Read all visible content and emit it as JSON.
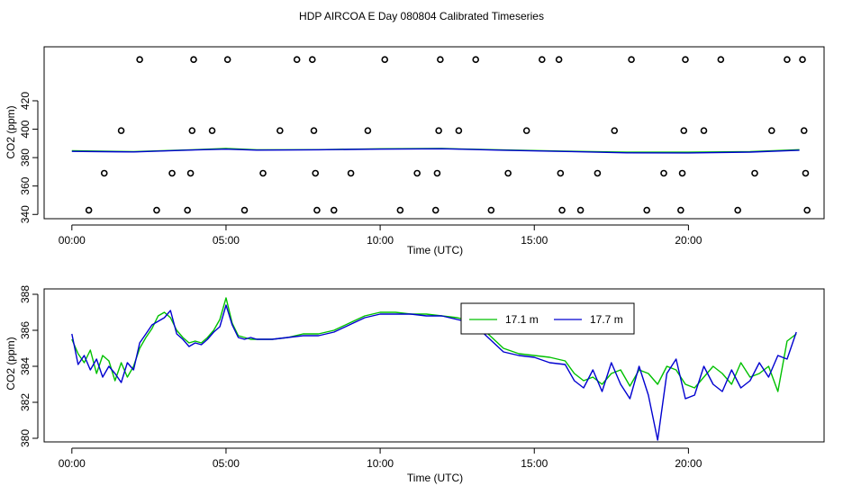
{
  "title": "HDP AIRCOA E  Day 080804  Calibrated Timeseries",
  "colors": {
    "green": "#00c000",
    "blue": "#0000d0",
    "axis": "#000000"
  },
  "chart_data": [
    {
      "type": "scatter",
      "title": "HDP AIRCOA E  Day 080804  Calibrated Timeseries",
      "xlabel": "Time (UTC)",
      "ylabel": "CO2 (ppm)",
      "xlim": [
        -0.9,
        24.4
      ],
      "ylim": [
        337,
        458
      ],
      "x_ticks": [
        0,
        5,
        10,
        15,
        20
      ],
      "x_tick_labels": [
        "00:00",
        "05:00",
        "10:00",
        "15:00",
        "20:00"
      ],
      "y_ticks": [
        340,
        360,
        380,
        400,
        420
      ],
      "y_tick_labels": [
        "340",
        "360",
        "380",
        "400",
        "420"
      ],
      "grid": false,
      "calibration_points": [
        {
          "x": 0.55,
          "y": 343
        },
        {
          "x": 1.05,
          "y": 369
        },
        {
          "x": 1.6,
          "y": 399
        },
        {
          "x": 2.2,
          "y": 449
        },
        {
          "x": 2.75,
          "y": 343
        },
        {
          "x": 3.25,
          "y": 369
        },
        {
          "x": 3.75,
          "y": 343
        },
        {
          "x": 3.85,
          "y": 369
        },
        {
          "x": 3.9,
          "y": 399
        },
        {
          "x": 3.95,
          "y": 449
        },
        {
          "x": 4.55,
          "y": 399
        },
        {
          "x": 5.05,
          "y": 449
        },
        {
          "x": 5.6,
          "y": 343
        },
        {
          "x": 6.2,
          "y": 369
        },
        {
          "x": 6.75,
          "y": 399
        },
        {
          "x": 7.3,
          "y": 449
        },
        {
          "x": 7.8,
          "y": 449
        },
        {
          "x": 7.85,
          "y": 399
        },
        {
          "x": 7.9,
          "y": 369
        },
        {
          "x": 7.95,
          "y": 343
        },
        {
          "x": 8.5,
          "y": 343
        },
        {
          "x": 9.05,
          "y": 369
        },
        {
          "x": 9.6,
          "y": 399
        },
        {
          "x": 10.15,
          "y": 449
        },
        {
          "x": 10.65,
          "y": 343
        },
        {
          "x": 11.2,
          "y": 369
        },
        {
          "x": 11.8,
          "y": 343
        },
        {
          "x": 11.85,
          "y": 369
        },
        {
          "x": 11.9,
          "y": 399
        },
        {
          "x": 11.95,
          "y": 449
        },
        {
          "x": 12.55,
          "y": 399
        },
        {
          "x": 13.1,
          "y": 449
        },
        {
          "x": 13.6,
          "y": 343
        },
        {
          "x": 14.15,
          "y": 369
        },
        {
          "x": 14.75,
          "y": 399
        },
        {
          "x": 15.25,
          "y": 449
        },
        {
          "x": 15.8,
          "y": 449
        },
        {
          "x": 15.85,
          "y": 369
        },
        {
          "x": 15.9,
          "y": 343
        },
        {
          "x": 16.5,
          "y": 343
        },
        {
          "x": 17.05,
          "y": 369
        },
        {
          "x": 17.6,
          "y": 399
        },
        {
          "x": 18.15,
          "y": 449
        },
        {
          "x": 18.65,
          "y": 343
        },
        {
          "x": 19.2,
          "y": 369
        },
        {
          "x": 19.75,
          "y": 343
        },
        {
          "x": 19.8,
          "y": 369
        },
        {
          "x": 19.85,
          "y": 399
        },
        {
          "x": 19.9,
          "y": 449
        },
        {
          "x": 20.5,
          "y": 399
        },
        {
          "x": 21.05,
          "y": 449
        },
        {
          "x": 21.6,
          "y": 343
        },
        {
          "x": 22.15,
          "y": 369
        },
        {
          "x": 22.7,
          "y": 399
        },
        {
          "x": 23.2,
          "y": 449
        },
        {
          "x": 23.7,
          "y": 449
        },
        {
          "x": 23.75,
          "y": 399
        },
        {
          "x": 23.8,
          "y": 369
        },
        {
          "x": 23.85,
          "y": 343
        }
      ],
      "series": [
        {
          "color": "#00c000",
          "x": [
            0,
            2,
            4,
            5,
            6,
            8,
            10,
            12,
            14,
            16,
            18,
            20,
            22,
            23.6
          ],
          "y": [
            384.8,
            384.2,
            385.6,
            386.4,
            385.5,
            385.6,
            386.2,
            386.4,
            385.4,
            384.6,
            383.8,
            383.8,
            384.2,
            385.6
          ]
        },
        {
          "color": "#0000d0",
          "x": [
            0,
            2,
            4,
            5,
            6,
            8,
            10,
            12,
            14,
            16,
            18,
            20,
            22,
            23.6
          ],
          "y": [
            384.4,
            384.0,
            385.4,
            386.0,
            385.3,
            385.5,
            386.0,
            386.2,
            385.2,
            384.3,
            383.4,
            383.3,
            383.9,
            385.2
          ]
        }
      ]
    },
    {
      "type": "line",
      "xlabel": "Time (UTC)",
      "ylabel": "CO2 (ppm)",
      "xlim": [
        -0.9,
        24.4
      ],
      "ylim": [
        379.8,
        388.3
      ],
      "x_ticks": [
        0,
        5,
        10,
        15,
        20
      ],
      "x_tick_labels": [
        "00:00",
        "05:00",
        "10:00",
        "15:00",
        "20:00"
      ],
      "y_ticks": [
        380,
        382,
        384,
        386,
        388
      ],
      "y_tick_labels": [
        "380",
        "382",
        "384",
        "386",
        "388"
      ],
      "grid": false,
      "legend_position": "top-right",
      "series": [
        {
          "name": "17.1 m",
          "color": "#00c000",
          "x": [
            0,
            0.2,
            0.4,
            0.6,
            0.8,
            1.0,
            1.2,
            1.4,
            1.6,
            1.8,
            2.0,
            2.2,
            2.4,
            2.6,
            2.8,
            3.0,
            3.2,
            3.4,
            3.6,
            3.8,
            4.0,
            4.2,
            4.4,
            4.6,
            4.8,
            5.0,
            5.2,
            5.4,
            5.6,
            5.8,
            6.0,
            6.5,
            7.0,
            7.5,
            8.0,
            8.5,
            9.0,
            9.5,
            10.0,
            10.5,
            11.0,
            11.5,
            12.0,
            12.5,
            13.0,
            13.5,
            14.0,
            14.5,
            15.0,
            15.5,
            16.0,
            16.3,
            16.6,
            16.9,
            17.2,
            17.5,
            17.8,
            18.1,
            18.4,
            18.7,
            19.0,
            19.3,
            19.6,
            19.9,
            20.2,
            20.5,
            20.8,
            21.1,
            21.4,
            21.7,
            22.0,
            22.3,
            22.6,
            22.9,
            23.2,
            23.5
          ],
          "y": [
            385.5,
            384.7,
            384.2,
            384.9,
            383.6,
            384.6,
            384.3,
            383.2,
            384.2,
            383.4,
            384.0,
            385.0,
            385.6,
            386.1,
            386.8,
            387.0,
            386.7,
            386.0,
            385.6,
            385.3,
            385.4,
            385.3,
            385.6,
            386.0,
            386.6,
            387.8,
            386.4,
            385.7,
            385.6,
            385.5,
            385.5,
            385.5,
            385.6,
            385.8,
            385.8,
            386.0,
            386.4,
            386.8,
            387.0,
            387.0,
            386.9,
            386.9,
            386.8,
            386.7,
            386.5,
            385.8,
            385.0,
            384.7,
            384.6,
            384.5,
            384.3,
            383.6,
            383.2,
            383.4,
            383.0,
            383.6,
            383.8,
            382.9,
            383.8,
            383.6,
            383.0,
            384.0,
            383.8,
            383.0,
            382.8,
            383.4,
            384.0,
            383.6,
            383.0,
            384.2,
            383.4,
            383.6,
            384.0,
            382.6,
            385.4,
            385.8
          ]
        },
        {
          "name": "17.7 m",
          "color": "#0000d0",
          "x": [
            0,
            0.2,
            0.4,
            0.6,
            0.8,
            1.0,
            1.2,
            1.4,
            1.6,
            1.8,
            2.0,
            2.2,
            2.4,
            2.6,
            2.8,
            3.0,
            3.2,
            3.4,
            3.6,
            3.8,
            4.0,
            4.2,
            4.4,
            4.6,
            4.8,
            5.0,
            5.2,
            5.4,
            5.6,
            5.8,
            6.0,
            6.5,
            7.0,
            7.5,
            8.0,
            8.5,
            9.0,
            9.5,
            10.0,
            10.5,
            11.0,
            11.5,
            12.0,
            12.5,
            13.0,
            13.5,
            14.0,
            14.5,
            15.0,
            15.5,
            16.0,
            16.3,
            16.6,
            16.9,
            17.2,
            17.5,
            17.8,
            18.1,
            18.4,
            18.7,
            19.0,
            19.3,
            19.6,
            19.9,
            20.2,
            20.5,
            20.8,
            21.1,
            21.4,
            21.7,
            22.0,
            22.3,
            22.6,
            22.9,
            23.2,
            23.5
          ],
          "y": [
            385.8,
            384.1,
            384.6,
            383.8,
            384.4,
            383.4,
            384.0,
            383.6,
            383.1,
            384.2,
            383.8,
            385.3,
            385.8,
            386.3,
            386.5,
            386.7,
            387.1,
            385.8,
            385.5,
            385.1,
            385.3,
            385.2,
            385.5,
            385.9,
            386.2,
            387.4,
            386.3,
            385.6,
            385.5,
            385.6,
            385.5,
            385.5,
            385.6,
            385.7,
            385.7,
            385.9,
            386.3,
            386.7,
            386.9,
            386.9,
            386.9,
            386.8,
            386.8,
            386.6,
            386.4,
            385.6,
            384.8,
            384.6,
            384.5,
            384.2,
            384.1,
            383.2,
            382.8,
            383.8,
            382.6,
            384.2,
            383.0,
            382.2,
            384.0,
            382.4,
            379.9,
            383.6,
            384.4,
            382.2,
            382.4,
            384.0,
            383.0,
            382.6,
            383.8,
            382.8,
            383.2,
            384.2,
            383.4,
            384.6,
            384.4,
            385.9
          ]
        }
      ]
    }
  ]
}
